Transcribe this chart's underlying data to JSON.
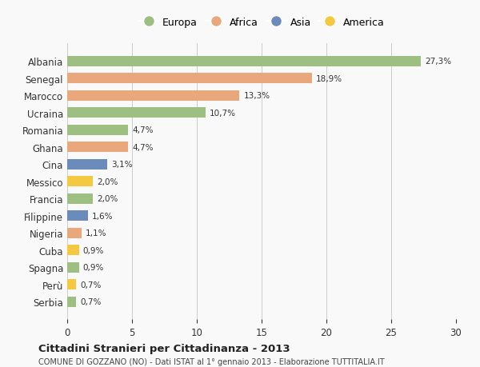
{
  "countries": [
    "Albania",
    "Senegal",
    "Marocco",
    "Ucraina",
    "Romania",
    "Ghana",
    "Cina",
    "Messico",
    "Francia",
    "Filippine",
    "Nigeria",
    "Cuba",
    "Spagna",
    "Perù",
    "Serbia"
  ],
  "values": [
    27.3,
    18.9,
    13.3,
    10.7,
    4.7,
    4.7,
    3.1,
    2.0,
    2.0,
    1.6,
    1.1,
    0.9,
    0.9,
    0.7,
    0.7
  ],
  "labels": [
    "27,3%",
    "18,9%",
    "13,3%",
    "10,7%",
    "4,7%",
    "4,7%",
    "3,1%",
    "2,0%",
    "2,0%",
    "1,6%",
    "1,1%",
    "0,9%",
    "0,9%",
    "0,7%",
    "0,7%"
  ],
  "colors": [
    "#9dc082",
    "#e8a87c",
    "#e8a87c",
    "#9dc082",
    "#9dc082",
    "#e8a87c",
    "#6b8cba",
    "#f5c842",
    "#9dc082",
    "#6b8cba",
    "#e8a87c",
    "#f5c842",
    "#9dc082",
    "#f5c842",
    "#9dc082"
  ],
  "legend_labels": [
    "Europa",
    "Africa",
    "Asia",
    "America"
  ],
  "legend_colors": [
    "#9dc082",
    "#e8a87c",
    "#6b8cba",
    "#f5c842"
  ],
  "xlim": [
    0,
    30
  ],
  "xticks": [
    0,
    5,
    10,
    15,
    20,
    25,
    30
  ],
  "title": "Cittadini Stranieri per Cittadinanza - 2013",
  "subtitle": "COMUNE DI GOZZANO (NO) - Dati ISTAT al 1° gennaio 2013 - Elaborazione TUTTITALIA.IT",
  "background_color": "#f9f9f9",
  "bar_height": 0.6
}
